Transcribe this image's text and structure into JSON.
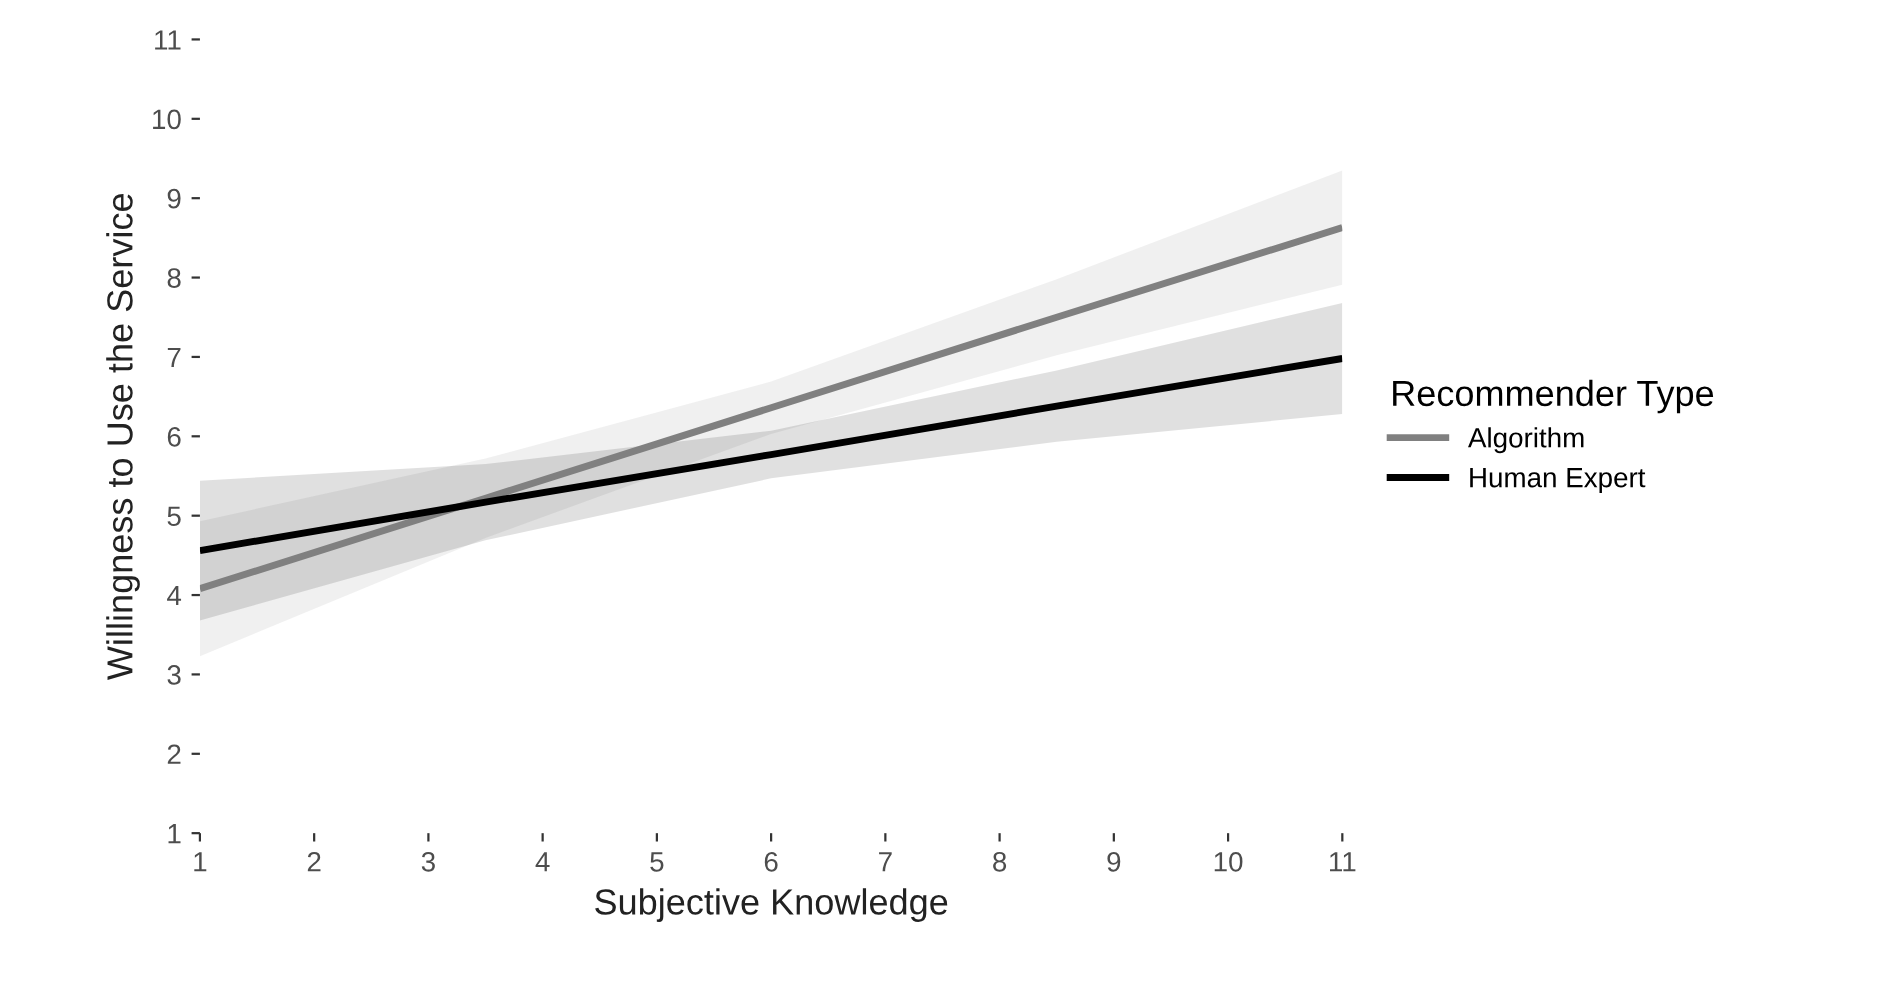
{
  "chart_data": {
    "type": "line",
    "xlabel": "Subjective Knowledge",
    "ylabel": "Willingness to Use the Service",
    "legend_title": "Recommender Type",
    "legend": "right",
    "grid": false,
    "x": [
      1,
      3.5,
      6,
      8.5,
      11
    ],
    "series": [
      {
        "name": "Algorithm",
        "color": "#808080",
        "values": [
          4.08,
          5.22,
          6.36,
          7.5,
          8.63
        ],
        "lower": [
          3.23,
          4.72,
          6.03,
          7.02,
          7.91
        ],
        "upper": [
          4.93,
          5.72,
          6.69,
          7.98,
          9.35
        ]
      },
      {
        "name": "Human Expert",
        "color": "#000000",
        "values": [
          4.56,
          5.17,
          5.77,
          6.38,
          6.98
        ],
        "lower": [
          3.68,
          4.69,
          5.47,
          5.93,
          6.28
        ],
        "upper": [
          5.44,
          5.65,
          6.07,
          6.83,
          7.68
        ]
      }
    ],
    "xlim": [
      1,
      11
    ],
    "ylim": [
      1,
      11
    ],
    "xticks": [
      1,
      2,
      3,
      4,
      5,
      6,
      7,
      8,
      9,
      10,
      11
    ],
    "yticks": [
      1,
      2,
      3,
      4,
      5,
      6,
      7,
      8,
      9,
      10,
      11
    ]
  }
}
